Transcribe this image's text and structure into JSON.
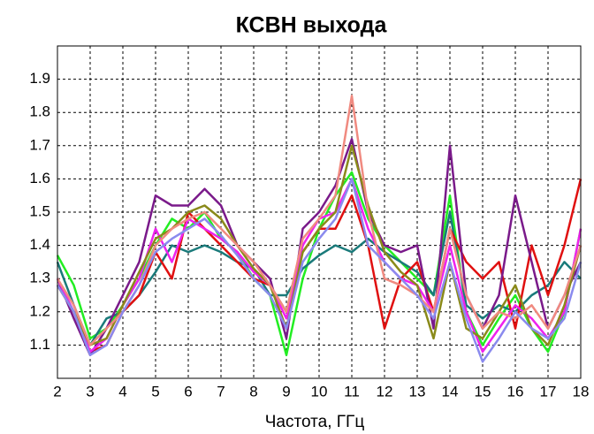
{
  "chart_data": {
    "type": "line",
    "title": "КСВН выхода",
    "x_label": "Частота, ГГц",
    "x": [
      2,
      2.5,
      3,
      3.5,
      4,
      4.5,
      5,
      5.5,
      6,
      6.5,
      7,
      7.5,
      8,
      8.5,
      9,
      9.5,
      10,
      10.5,
      11,
      11.5,
      12,
      12.5,
      13,
      13.5,
      14,
      14.5,
      15,
      15.5,
      16,
      16.5,
      17,
      17.5,
      18
    ],
    "xlim": [
      2,
      18
    ],
    "xticks": [
      2,
      3,
      4,
      5,
      6,
      7,
      8,
      9,
      10,
      11,
      12,
      13,
      14,
      15,
      16,
      17,
      18
    ],
    "ylim": [
      1.0,
      2.0
    ],
    "yticks": [
      1.1,
      1.2,
      1.3,
      1.4,
      1.5,
      1.6,
      1.7,
      1.8,
      1.9
    ],
    "grid": true,
    "series": [
      {
        "color": "#22ee22",
        "values": [
          1.37,
          1.28,
          1.12,
          1.15,
          1.22,
          1.3,
          1.4,
          1.48,
          1.45,
          1.5,
          1.42,
          1.38,
          1.3,
          1.25,
          1.07,
          1.3,
          1.45,
          1.55,
          1.62,
          1.48,
          1.4,
          1.35,
          1.3,
          1.25,
          1.55,
          1.2,
          1.1,
          1.18,
          1.25,
          1.15,
          1.08,
          1.2,
          1.45
        ]
      },
      {
        "color": "#1a7a7a",
        "values": [
          1.35,
          1.22,
          1.1,
          1.18,
          1.2,
          1.25,
          1.32,
          1.4,
          1.38,
          1.4,
          1.38,
          1.35,
          1.33,
          1.25,
          1.25,
          1.33,
          1.37,
          1.4,
          1.38,
          1.42,
          1.38,
          1.35,
          1.32,
          1.25,
          1.5,
          1.22,
          1.18,
          1.22,
          1.2,
          1.25,
          1.28,
          1.35,
          1.3
        ]
      },
      {
        "color": "#e01010",
        "values": [
          1.28,
          1.2,
          1.08,
          1.1,
          1.2,
          1.25,
          1.38,
          1.3,
          1.5,
          1.45,
          1.4,
          1.35,
          1.3,
          1.28,
          1.2,
          1.38,
          1.45,
          1.45,
          1.55,
          1.4,
          1.15,
          1.3,
          1.35,
          1.2,
          1.45,
          1.35,
          1.3,
          1.35,
          1.15,
          1.4,
          1.25,
          1.4,
          1.6
        ]
      },
      {
        "color": "#7a1a8a",
        "values": [
          1.3,
          1.18,
          1.07,
          1.15,
          1.25,
          1.35,
          1.55,
          1.52,
          1.52,
          1.57,
          1.52,
          1.4,
          1.35,
          1.3,
          1.12,
          1.45,
          1.5,
          1.58,
          1.72,
          1.5,
          1.4,
          1.38,
          1.4,
          1.15,
          1.7,
          1.25,
          1.15,
          1.25,
          1.55,
          1.35,
          1.15,
          1.25,
          1.35
        ]
      },
      {
        "color": "#ee22ee",
        "values": [
          1.3,
          1.2,
          1.08,
          1.12,
          1.22,
          1.3,
          1.45,
          1.35,
          1.48,
          1.45,
          1.42,
          1.38,
          1.32,
          1.28,
          1.18,
          1.4,
          1.48,
          1.5,
          1.6,
          1.45,
          1.35,
          1.3,
          1.28,
          1.2,
          1.4,
          1.2,
          1.08,
          1.15,
          1.22,
          1.18,
          1.12,
          1.2,
          1.45
        ]
      },
      {
        "color": "#8a8a1a",
        "values": [
          1.28,
          1.2,
          1.1,
          1.12,
          1.22,
          1.32,
          1.42,
          1.45,
          1.5,
          1.52,
          1.48,
          1.4,
          1.33,
          1.28,
          1.15,
          1.38,
          1.45,
          1.5,
          1.7,
          1.52,
          1.38,
          1.32,
          1.28,
          1.12,
          1.35,
          1.15,
          1.12,
          1.2,
          1.28,
          1.15,
          1.1,
          1.22,
          1.4
        ]
      },
      {
        "color": "#f08a80",
        "values": [
          1.3,
          1.22,
          1.1,
          1.15,
          1.2,
          1.28,
          1.4,
          1.45,
          1.48,
          1.5,
          1.45,
          1.4,
          1.35,
          1.28,
          1.2,
          1.42,
          1.48,
          1.55,
          1.85,
          1.5,
          1.3,
          1.28,
          1.25,
          1.2,
          1.45,
          1.25,
          1.15,
          1.2,
          1.18,
          1.22,
          1.15,
          1.25,
          1.4
        ]
      },
      {
        "color": "#8a8aee",
        "values": [
          1.28,
          1.2,
          1.07,
          1.1,
          1.2,
          1.28,
          1.38,
          1.42,
          1.45,
          1.48,
          1.43,
          1.37,
          1.3,
          1.25,
          1.15,
          1.35,
          1.42,
          1.48,
          1.6,
          1.4,
          1.35,
          1.3,
          1.25,
          1.18,
          1.35,
          1.18,
          1.05,
          1.12,
          1.2,
          1.15,
          1.12,
          1.18,
          1.35
        ]
      }
    ]
  }
}
